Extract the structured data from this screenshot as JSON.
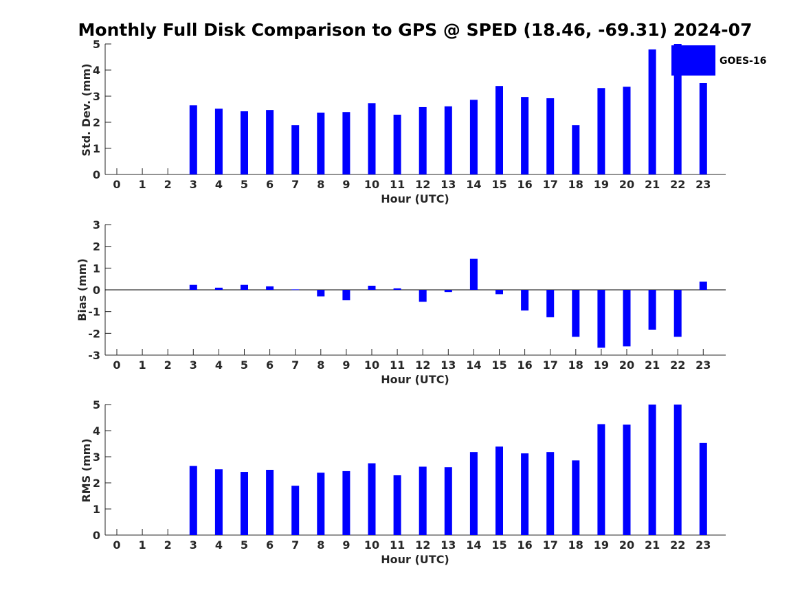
{
  "figure": {
    "title": "Monthly Full Disk Comparison to GPS @ SPED (18.46, -69.31) 2024-07",
    "legend_label": "GOES-16",
    "bar_color": "#0000ff"
  },
  "chart_data": [
    {
      "type": "bar",
      "ylabel": "Std. Dev. (mm)",
      "xlabel": "Hour (UTC)",
      "ylim": [
        0,
        5
      ],
      "yticks": [
        0,
        1,
        2,
        3,
        4,
        5
      ],
      "grid": false,
      "legend": "top-right",
      "categories": [
        "0",
        "1",
        "2",
        "3",
        "4",
        "5",
        "6",
        "7",
        "8",
        "9",
        "10",
        "11",
        "12",
        "13",
        "14",
        "15",
        "16",
        "17",
        "18",
        "19",
        "20",
        "21",
        "22",
        "23"
      ],
      "series": [
        {
          "name": "GOES-16",
          "values": [
            null,
            null,
            null,
            2.65,
            2.52,
            2.42,
            2.47,
            1.89,
            2.37,
            2.39,
            2.73,
            2.29,
            2.58,
            2.61,
            2.86,
            3.39,
            2.97,
            2.92,
            1.89,
            3.31,
            3.36,
            4.79,
            5.0,
            3.5
          ]
        }
      ]
    },
    {
      "type": "bar",
      "ylabel": "Bias (mm)",
      "xlabel": "Hour (UTC)",
      "ylim": [
        -3,
        3
      ],
      "yticks": [
        -3,
        -2,
        -1,
        0,
        1,
        2,
        3
      ],
      "grid": false,
      "categories": [
        "0",
        "1",
        "2",
        "3",
        "4",
        "5",
        "6",
        "7",
        "8",
        "9",
        "10",
        "11",
        "12",
        "13",
        "14",
        "15",
        "16",
        "17",
        "18",
        "19",
        "20",
        "21",
        "22",
        "23"
      ],
      "series": [
        {
          "name": "GOES-16",
          "values": [
            null,
            null,
            null,
            0.23,
            0.1,
            0.23,
            0.16,
            0.02,
            -0.3,
            -0.48,
            0.19,
            0.07,
            -0.55,
            -0.1,
            1.43,
            -0.2,
            -0.95,
            -1.26,
            -2.16,
            -2.66,
            -2.6,
            -1.83,
            -2.16,
            0.38
          ]
        }
      ]
    },
    {
      "type": "bar",
      "ylabel": "RMS (mm)",
      "xlabel": "Hour (UTC)",
      "ylim": [
        0,
        5
      ],
      "yticks": [
        0,
        1,
        2,
        3,
        4,
        5
      ],
      "grid": false,
      "categories": [
        "0",
        "1",
        "2",
        "3",
        "4",
        "5",
        "6",
        "7",
        "8",
        "9",
        "10",
        "11",
        "12",
        "13",
        "14",
        "15",
        "16",
        "17",
        "18",
        "19",
        "20",
        "21",
        "22",
        "23"
      ],
      "series": [
        {
          "name": "GOES-16",
          "values": [
            null,
            null,
            null,
            2.65,
            2.52,
            2.42,
            2.5,
            1.89,
            2.39,
            2.45,
            2.75,
            2.29,
            2.62,
            2.6,
            3.18,
            3.39,
            3.13,
            3.18,
            2.86,
            4.25,
            4.23,
            5.0,
            5.0,
            3.53
          ]
        }
      ]
    }
  ]
}
